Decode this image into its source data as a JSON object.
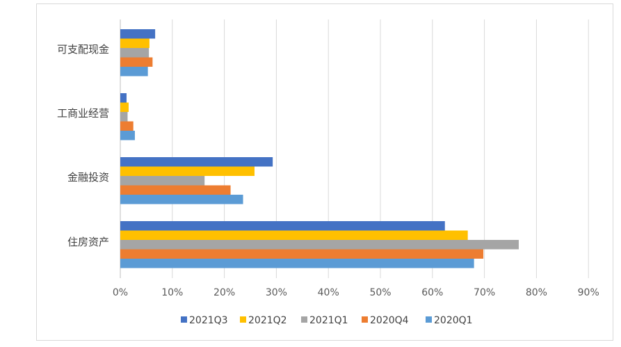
{
  "chart_data": {
    "type": "bar",
    "orientation": "horizontal",
    "categories": [
      "可支配现金",
      "工商业经营",
      "金融投资",
      "住房资产"
    ],
    "series": [
      {
        "name": "2021Q3",
        "color": "#4472C4",
        "values": [
          6.7,
          1.2,
          29.3,
          62.4
        ]
      },
      {
        "name": "2021Q2",
        "color": "#FFC000",
        "values": [
          5.6,
          1.6,
          25.8,
          66.8
        ]
      },
      {
        "name": "2021Q1",
        "color": "#A5A5A5",
        "values": [
          5.5,
          1.4,
          16.2,
          76.6
        ]
      },
      {
        "name": "2020Q4",
        "color": "#ED7D31",
        "values": [
          6.2,
          2.5,
          21.2,
          69.8
        ]
      },
      {
        "name": "2020Q1",
        "color": "#5B9BD5",
        "values": [
          5.3,
          2.8,
          23.6,
          68.0
        ]
      }
    ],
    "x_ticks": [
      "0%",
      "10%",
      "20%",
      "30%",
      "40%",
      "50%",
      "60%",
      "70%",
      "80%",
      "90%"
    ],
    "xlim": [
      0,
      90
    ],
    "xlabel": "",
    "ylabel": "",
    "title": "",
    "grid": "vertical",
    "legend": "bottom"
  }
}
